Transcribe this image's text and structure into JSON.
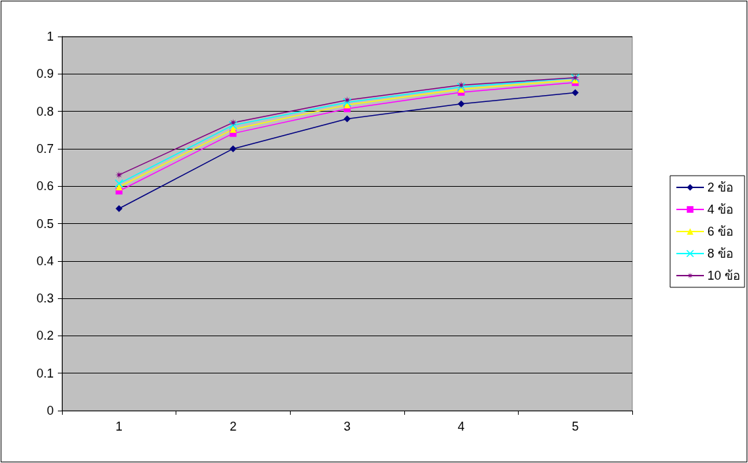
{
  "chart_data": {
    "type": "line",
    "categories": [
      "1",
      "2",
      "3",
      "4",
      "5"
    ],
    "series": [
      {
        "name": "2 ข้อ",
        "color": "#000080",
        "marker": "diamond",
        "values": [
          0.54,
          0.7,
          0.78,
          0.82,
          0.85
        ]
      },
      {
        "name": "4 ข้อ",
        "color": "#ff00ff",
        "marker": "square",
        "values": [
          0.587,
          0.741,
          0.807,
          0.851,
          0.877
        ]
      },
      {
        "name": "6 ข้อ",
        "color": "#ffff00",
        "marker": "triangle",
        "values": [
          0.598,
          0.752,
          0.817,
          0.859,
          0.884
        ]
      },
      {
        "name": "8 ข้อ",
        "color": "#00ffff",
        "marker": "cross",
        "values": [
          0.607,
          0.763,
          0.824,
          0.865,
          0.889
        ]
      },
      {
        "name": "10 ข้อ",
        "color": "#800080",
        "marker": "star",
        "values": [
          0.63,
          0.77,
          0.83,
          0.87,
          0.89
        ]
      }
    ],
    "ylim": [
      0,
      1
    ],
    "yticks": [
      0,
      0.1,
      0.2,
      0.3,
      0.4,
      0.5,
      0.6,
      0.7,
      0.8,
      0.9,
      1
    ],
    "grid": "y",
    "legend": "right",
    "line_style": "solid"
  }
}
